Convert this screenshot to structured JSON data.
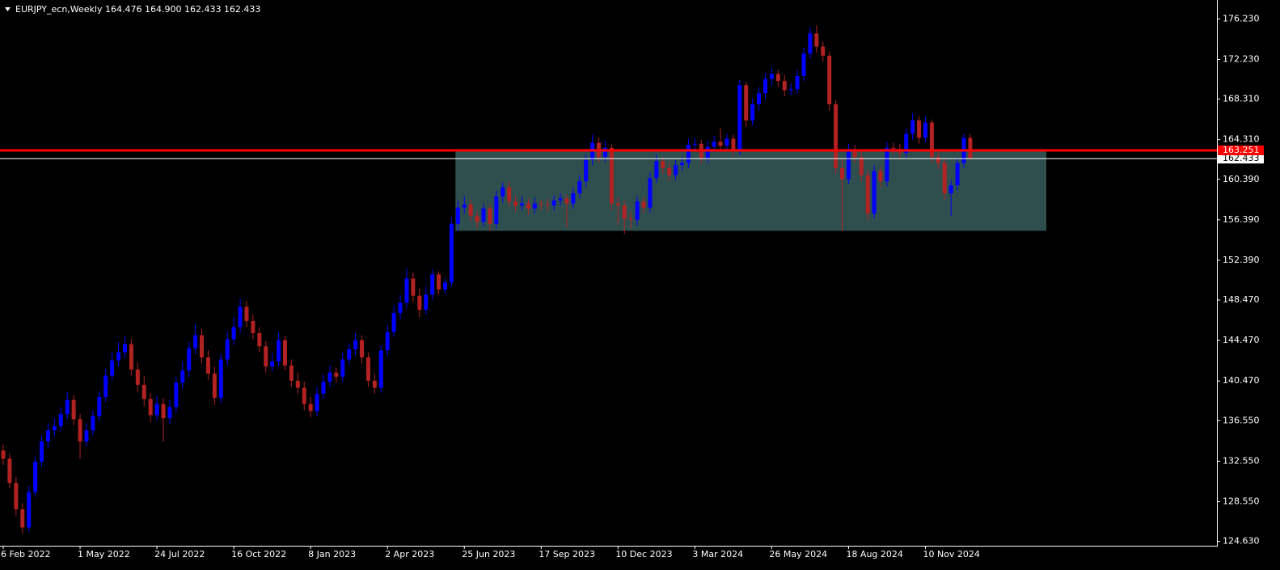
{
  "chart_data": {
    "type": "candlestick",
    "title": "EURJPY_ecn,Weekly  164.476 164.900 162.433 162.433",
    "up_color": "#0000ff",
    "down_color": "#b22222",
    "categories": [
      "6 Feb 2022",
      null,
      null,
      null,
      null,
      null,
      null,
      null,
      null,
      null,
      null,
      null,
      "1 May 2022",
      null,
      null,
      null,
      null,
      null,
      null,
      null,
      null,
      null,
      null,
      null,
      "24 Jul 2022",
      null,
      null,
      null,
      null,
      null,
      null,
      null,
      null,
      null,
      null,
      null,
      "16 Oct 2022",
      null,
      null,
      null,
      null,
      null,
      null,
      null,
      null,
      null,
      null,
      null,
      "8 Jan 2023",
      null,
      null,
      null,
      null,
      null,
      null,
      null,
      null,
      null,
      null,
      null,
      "2 Apr 2023",
      null,
      null,
      null,
      null,
      null,
      null,
      null,
      null,
      null,
      null,
      null,
      "25 Jun 2023",
      null,
      null,
      null,
      null,
      null,
      null,
      null,
      null,
      null,
      null,
      null,
      "17 Sep 2023",
      null,
      null,
      null,
      null,
      null,
      null,
      null,
      null,
      null,
      null,
      null,
      "10 Dec 2023",
      null,
      null,
      null,
      null,
      null,
      null,
      null,
      null,
      null,
      null,
      null,
      "3 Mar 2024",
      null,
      null,
      null,
      null,
      null,
      null,
      null,
      null,
      null,
      null,
      null,
      "26 May 2024",
      null,
      null,
      null,
      null,
      null,
      null,
      null,
      null,
      null,
      null,
      null,
      "18 Aug 2024",
      null,
      null,
      null,
      null,
      null,
      null,
      null,
      null,
      null,
      null,
      null,
      "10 Nov 2024",
      null,
      null,
      null,
      null,
      null,
      null,
      null
    ],
    "open": [
      133.6,
      132.8,
      130.4,
      127.8,
      126.0,
      129.5,
      132.5,
      134.5,
      135.6,
      136.0,
      137.2,
      138.6,
      136.7,
      134.5,
      135.6,
      137.0,
      138.9,
      141.0,
      142.5,
      143.3,
      144.1,
      141.6,
      140.1,
      138.7,
      137.1,
      138.2,
      136.8,
      137.9,
      140.3,
      141.5,
      143.7,
      145.0,
      142.8,
      141.2,
      138.8,
      142.6,
      144.6,
      145.8,
      147.8,
      146.4,
      145.2,
      143.9,
      141.9,
      142.4,
      144.5,
      142.0,
      140.5,
      139.8,
      138.2,
      137.5,
      139.2,
      140.4,
      141.3,
      140.9,
      142.6,
      143.6,
      144.5,
      142.8,
      140.5,
      139.8,
      143.5,
      145.3,
      147.2,
      148.2,
      150.6,
      148.9,
      147.5,
      149.0,
      151.0,
      149.5,
      150.2,
      156.0,
      157.6,
      157.9,
      156.8,
      156.2,
      157.5,
      156.0,
      158.7,
      159.6,
      158.2,
      157.8,
      158.0,
      157.5,
      158.0,
      157.9,
      157.8,
      158.3,
      158.5,
      158.0,
      159.0,
      160.2,
      162.3,
      164.0,
      162.6,
      163.5,
      158.0,
      157.8,
      156.5,
      156.4,
      158.2,
      157.6,
      160.5,
      162.2,
      161.5,
      160.8,
      161.8,
      162.0,
      163.8,
      163.9,
      162.5,
      163.6,
      164.1,
      163.7,
      164.4,
      163.2,
      169.7,
      166.2,
      167.8,
      168.9,
      170.3,
      170.8,
      170.1,
      169.2,
      169.3,
      170.6,
      172.8,
      174.8,
      173.5,
      172.6,
      167.8,
      161.5,
      160.4,
      163.3,
      162.6,
      160.8,
      157.0,
      161.2,
      160.2,
      163.5,
      163.4,
      163.0,
      164.9,
      166.2,
      164.5,
      166.0,
      162.6,
      162.0,
      159.0,
      159.8,
      162.0,
      164.476
    ],
    "high": [
      134.2,
      133.3,
      131.0,
      128.4,
      130.1,
      133.0,
      135.1,
      136.3,
      136.8,
      137.9,
      139.4,
      139.1,
      137.2,
      136.3,
      137.6,
      139.5,
      141.7,
      143.4,
      144.3,
      144.9,
      144.6,
      142.3,
      141.0,
      139.3,
      139.0,
      138.8,
      138.6,
      140.9,
      142.4,
      144.3,
      146.1,
      145.6,
      143.5,
      141.9,
      143.2,
      145.4,
      146.8,
      148.6,
      148.4,
      147.0,
      145.8,
      144.4,
      143.2,
      145.3,
      144.9,
      142.6,
      141.3,
      140.4,
      138.9,
      139.9,
      141.1,
      142.0,
      141.8,
      143.3,
      144.2,
      145.2,
      145.0,
      143.3,
      141.2,
      144.0,
      146.0,
      147.9,
      149.0,
      151.6,
      151.2,
      149.6,
      149.8,
      151.5,
      151.3,
      150.6,
      156.6,
      158.3,
      158.7,
      158.4,
      157.3,
      158.0,
      157.9,
      159.3,
      160.1,
      160.2,
      158.8,
      158.7,
      158.5,
      158.6,
      158.4,
      158.5,
      158.8,
      159.0,
      158.9,
      159.6,
      160.8,
      162.9,
      164.8,
      164.5,
      164.2,
      163.8,
      158.6,
      158.3,
      157.2,
      158.7,
      158.6,
      161.1,
      162.8,
      162.6,
      162.0,
      162.3,
      162.6,
      164.4,
      164.5,
      164.3,
      164.2,
      164.7,
      165.5,
      164.9,
      164.8,
      170.2,
      170.0,
      168.4,
      169.5,
      170.9,
      171.4,
      171.2,
      170.7,
      169.9,
      171.2,
      173.4,
      175.4,
      175.6,
      174.0,
      173.0,
      168.2,
      162.5,
      163.9,
      163.8,
      163.1,
      161.3,
      161.8,
      161.6,
      164.1,
      164.0,
      163.9,
      165.4,
      166.9,
      166.6,
      166.6,
      166.3,
      163.2,
      162.4,
      160.3,
      162.5,
      164.9,
      164.9
    ],
    "low": [
      132.2,
      129.9,
      127.2,
      125.4,
      125.6,
      129.0,
      132.0,
      133.9,
      135.0,
      135.5,
      136.7,
      136.1,
      132.8,
      134.0,
      135.1,
      136.5,
      138.4,
      140.5,
      141.9,
      142.7,
      141.0,
      139.4,
      138.0,
      136.4,
      136.6,
      134.5,
      136.2,
      137.3,
      139.7,
      140.9,
      143.1,
      142.2,
      140.6,
      138.1,
      138.3,
      142.0,
      144.0,
      145.2,
      145.8,
      144.6,
      143.3,
      141.3,
      141.4,
      141.9,
      141.5,
      139.9,
      139.2,
      137.6,
      136.9,
      137.0,
      138.7,
      139.9,
      140.3,
      140.4,
      142.1,
      143.0,
      142.2,
      139.9,
      139.2,
      139.3,
      142.9,
      144.8,
      146.6,
      147.7,
      148.3,
      146.8,
      147.0,
      148.5,
      149.0,
      149.1,
      149.8,
      155.3,
      157.0,
      156.2,
      155.5,
      155.7,
      155.3,
      155.5,
      158.1,
      157.7,
      157.2,
      157.3,
      156.9,
      157.0,
      157.3,
      157.2,
      157.3,
      157.8,
      155.6,
      157.5,
      158.5,
      159.6,
      161.8,
      162.0,
      162.1,
      157.3,
      155.9,
      155.0,
      155.5,
      155.8,
      157.0,
      157.1,
      160.0,
      160.9,
      160.2,
      160.3,
      161.2,
      161.5,
      163.2,
      161.9,
      162.0,
      163.1,
      163.1,
      163.2,
      162.6,
      162.8,
      165.6,
      165.7,
      167.2,
      168.3,
      169.7,
      169.5,
      168.6,
      168.7,
      168.8,
      170.1,
      172.3,
      172.9,
      172.0,
      167.2,
      160.9,
      155.3,
      159.9,
      162.0,
      160.2,
      156.3,
      156.5,
      159.6,
      159.7,
      162.8,
      162.4,
      162.5,
      164.3,
      163.9,
      164.0,
      162.0,
      161.4,
      158.4,
      156.8,
      159.3,
      161.5,
      162.433
    ],
    "close": [
      132.8,
      130.4,
      127.8,
      126.0,
      129.5,
      132.5,
      134.5,
      135.6,
      136.0,
      137.2,
      138.6,
      136.7,
      134.5,
      135.6,
      137.0,
      138.9,
      141.0,
      142.5,
      143.3,
      144.1,
      141.6,
      140.1,
      138.7,
      137.1,
      138.2,
      136.8,
      137.9,
      140.3,
      141.5,
      143.7,
      145.0,
      142.8,
      141.2,
      138.8,
      142.6,
      144.6,
      145.8,
      147.8,
      146.4,
      145.2,
      143.9,
      141.9,
      142.4,
      144.5,
      142.0,
      140.5,
      139.8,
      138.2,
      137.5,
      139.2,
      140.4,
      141.3,
      140.9,
      142.6,
      143.6,
      144.5,
      142.8,
      140.5,
      139.8,
      143.5,
      145.3,
      147.2,
      148.2,
      150.6,
      148.9,
      147.5,
      149.0,
      151.0,
      149.5,
      150.2,
      156.0,
      157.6,
      157.9,
      156.8,
      156.2,
      157.5,
      156.0,
      158.7,
      159.6,
      158.2,
      157.8,
      158.0,
      157.5,
      158.0,
      157.9,
      157.8,
      158.3,
      158.5,
      158.0,
      159.0,
      160.2,
      162.3,
      164.0,
      162.6,
      163.5,
      158.0,
      157.8,
      156.5,
      156.4,
      158.2,
      157.6,
      160.5,
      162.2,
      161.5,
      160.8,
      161.8,
      162.0,
      163.8,
      163.9,
      162.5,
      163.6,
      164.1,
      163.7,
      164.4,
      163.2,
      169.7,
      166.2,
      167.8,
      168.9,
      170.3,
      170.8,
      170.1,
      169.2,
      169.3,
      170.6,
      172.8,
      174.8,
      173.5,
      172.6,
      167.8,
      161.5,
      160.4,
      163.3,
      162.6,
      160.8,
      157.0,
      161.2,
      160.2,
      163.5,
      163.4,
      163.0,
      164.9,
      166.2,
      164.5,
      166.0,
      162.6,
      162.0,
      159.0,
      159.8,
      162.0,
      164.476,
      162.433
    ],
    "ylim": [
      124.2,
      178.1
    ],
    "yticks": [
      {
        "value": 124.63,
        "label": "124.630"
      },
      {
        "value": 128.55,
        "label": "128.550"
      },
      {
        "value": 132.55,
        "label": "132.550"
      },
      {
        "value": 136.55,
        "label": "136.550"
      },
      {
        "value": 140.47,
        "label": "140.470"
      },
      {
        "value": 144.47,
        "label": "144.470"
      },
      {
        "value": 148.47,
        "label": "148.470"
      },
      {
        "value": 152.39,
        "label": "152.390"
      },
      {
        "value": 156.39,
        "label": "156.390"
      },
      {
        "value": 160.39,
        "label": "160.390"
      },
      {
        "value": 164.31,
        "label": "164.310"
      },
      {
        "value": 168.31,
        "label": "168.310"
      },
      {
        "value": 172.23,
        "label": "172.230"
      },
      {
        "value": 176.23,
        "label": "176.230"
      }
    ],
    "hlines": [
      {
        "value": 162.433,
        "color": "#ffffff"
      },
      {
        "value": 163.251,
        "color": "#ff0000"
      }
    ],
    "zone": {
      "ylim": [
        155.3,
        163.251
      ],
      "color": "#2f4f4f"
    }
  }
}
